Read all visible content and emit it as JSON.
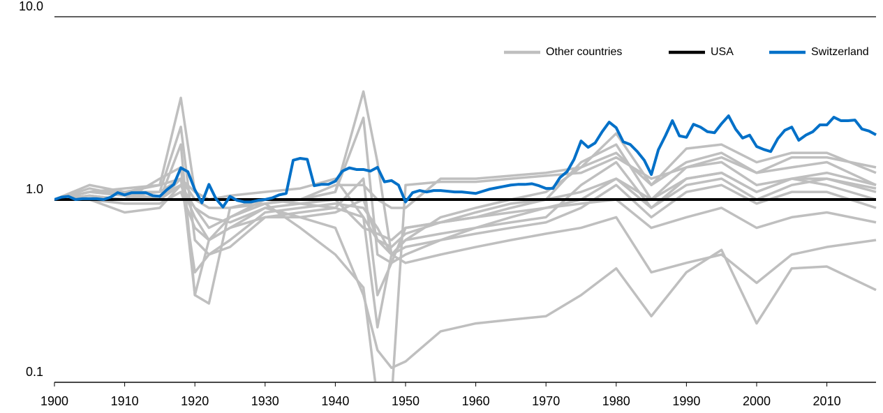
{
  "chart_data": {
    "type": "line",
    "log_y": true,
    "grid": true,
    "xlim": [
      1900,
      2017
    ],
    "xticks": [
      1900,
      1910,
      1920,
      1930,
      1940,
      1950,
      1960,
      1970,
      1980,
      1990,
      2000,
      2010
    ],
    "ylim": [
      0.1,
      10
    ],
    "yticks": [
      0.1,
      {
        "value": 1,
        "label": "1.0"
      },
      {
        "value": 10,
        "label": "10.0"
      }
    ],
    "series": [
      {
        "name": "Other countries",
        "color": "#bfbfbf",
        "x": [
          1900,
          1905,
          1910,
          1915,
          1918,
          1920,
          1922,
          1925,
          1930,
          1935,
          1940,
          1944,
          1946,
          1948,
          1950,
          1955,
          1960,
          1965,
          1970,
          1975,
          1980,
          1985,
          1990,
          1995,
          2000,
          2005,
          2010,
          2017
        ],
        "lines": [
          [
            1.0,
            1.1,
            1.1,
            1.2,
            3.6,
            1.1,
            1.0,
            1.0,
            1.0,
            1.0,
            1.1,
            3.9,
            1.6,
            0.5,
            0.6,
            0.8,
            0.9,
            1.0,
            1.1,
            1.5,
            2.3,
            1.2,
            1.9,
            2.0,
            1.6,
            1.8,
            1.8,
            1.4
          ],
          [
            1.0,
            1.15,
            1.05,
            1.1,
            2.5,
            0.6,
            0.5,
            0.55,
            0.8,
            0.85,
            0.9,
            1.3,
            0.3,
            0.45,
            0.7,
            0.75,
            0.8,
            0.9,
            1.0,
            1.6,
            2.0,
            1.0,
            1.5,
            1.7,
            1.4,
            1.5,
            1.6,
            1.2
          ],
          [
            1.0,
            1.0,
            0.85,
            0.9,
            1.2,
            0.8,
            0.6,
            0.7,
            0.9,
            0.95,
            0.9,
            0.8,
            0.2,
            0.5,
            0.6,
            0.65,
            0.7,
            0.75,
            0.8,
            1.2,
            1.6,
            0.9,
            1.3,
            1.4,
            1.1,
            1.3,
            1.2,
            1.0
          ],
          [
            1.0,
            1.05,
            1.0,
            1.0,
            1.3,
            0.4,
            0.5,
            0.6,
            0.85,
            0.9,
            0.95,
            0.9,
            0.7,
            0.5,
            0.55,
            0.6,
            0.65,
            0.7,
            0.75,
            0.9,
            1.2,
            0.8,
            1.1,
            1.2,
            0.95,
            1.1,
            1.1,
            0.9
          ],
          [
            1.0,
            1.1,
            1.1,
            1.0,
            2.0,
            0.3,
            0.6,
            0.8,
            1.0,
            1.0,
            1.1,
            2.8,
            0.5,
            0.45,
            0.5,
            0.6,
            0.7,
            0.8,
            0.9,
            1.0,
            1.3,
            0.9,
            1.2,
            1.3,
            1.0,
            1.2,
            1.3,
            1.1
          ],
          [
            1.0,
            1.0,
            0.95,
            0.95,
            1.1,
            0.7,
            0.6,
            0.7,
            0.8,
            0.8,
            0.7,
            0.3,
            0.15,
            0.12,
            0.13,
            0.19,
            0.21,
            0.22,
            0.23,
            0.3,
            0.42,
            0.23,
            0.4,
            0.53,
            0.21,
            0.42,
            0.43,
            0.32
          ],
          [
            1.0,
            1.1,
            1.05,
            1.0,
            1.2,
            0.9,
            0.8,
            0.75,
            0.9,
            0.8,
            0.85,
            1.0,
            0.6,
            0.5,
            0.45,
            0.5,
            0.55,
            0.6,
            0.65,
            0.7,
            0.8,
            0.4,
            0.45,
            0.5,
            0.35,
            0.5,
            0.55,
            0.6
          ],
          [
            1.0,
            1.2,
            1.1,
            1.1,
            1.3,
            1.0,
            0.9,
            0.9,
            1.0,
            0.95,
            1.0,
            0.7,
            0.65,
            0.6,
            0.7,
            0.75,
            0.8,
            0.85,
            0.9,
            0.95,
            1.0,
            0.7,
            0.8,
            0.9,
            0.7,
            0.8,
            0.85,
            0.75
          ],
          [
            1.0,
            1.05,
            1.0,
            1.05,
            1.2,
            0.9,
            0.7,
            0.8,
            0.95,
            1.0,
            1.2,
            1.2,
            1.0,
            0.9,
            0.9,
            1.3,
            1.3,
            1.35,
            1.4,
            1.5,
            1.8,
            1.2,
            1.6,
            1.8,
            1.4,
            1.7,
            1.7,
            1.5
          ],
          [
            1.0,
            1.1,
            1.15,
            1.2,
            1.3,
            1.1,
            1.0,
            1.05,
            1.1,
            1.15,
            1.3,
            0.8,
            0.6,
            0.55,
            0.65,
            0.75,
            0.85,
            0.95,
            1.0,
            1.1,
            1.3,
            1.0,
            1.3,
            1.4,
            1.1,
            1.3,
            1.3,
            1.15
          ],
          [
            1.0,
            1.05,
            1.0,
            1.3,
            1.5,
            0.3,
            0.27,
            0.9,
            0.95,
            0.7,
            0.5,
            0.33,
            0.08,
            0.08,
            1.2,
            1.25,
            1.25,
            1.3,
            1.35,
            1.4,
            1.7,
            1.3,
            1.5,
            1.6,
            1.2,
            1.3,
            1.4,
            1.2
          ]
        ]
      },
      {
        "name": "USA",
        "color": "#000000",
        "x": [
          1900,
          2017
        ],
        "values": [
          1,
          1
        ]
      },
      {
        "name": "Switzerland",
        "color": "#0070c8",
        "x": [
          1900,
          1901,
          1902,
          1903,
          1904,
          1905,
          1906,
          1907,
          1908,
          1909,
          1910,
          1911,
          1912,
          1913,
          1914,
          1915,
          1916,
          1917,
          1918,
          1919,
          1920,
          1921,
          1922,
          1923,
          1924,
          1925,
          1926,
          1927,
          1928,
          1929,
          1930,
          1931,
          1932,
          1933,
          1934,
          1935,
          1936,
          1937,
          1938,
          1939,
          1940,
          1941,
          1942,
          1943,
          1944,
          1945,
          1946,
          1947,
          1948,
          1949,
          1950,
          1951,
          1952,
          1953,
          1954,
          1955,
          1956,
          1957,
          1958,
          1959,
          1960,
          1961,
          1962,
          1963,
          1964,
          1965,
          1966,
          1967,
          1968,
          1969,
          1970,
          1971,
          1972,
          1973,
          1974,
          1975,
          1976,
          1977,
          1978,
          1979,
          1980,
          1981,
          1982,
          1983,
          1984,
          1985,
          1986,
          1987,
          1988,
          1989,
          1990,
          1991,
          1992,
          1993,
          1994,
          1995,
          1996,
          1997,
          1998,
          1999,
          2000,
          2001,
          2002,
          2003,
          2004,
          2005,
          2006,
          2007,
          2008,
          2009,
          2010,
          2011,
          2012,
          2013,
          2014,
          2015,
          2016,
          2017
        ],
        "values": [
          1.0,
          1.03,
          1.04,
          1.0,
          1.01,
          1.01,
          1.01,
          1.0,
          1.03,
          1.09,
          1.06,
          1.09,
          1.09,
          1.09,
          1.05,
          1.04,
          1.13,
          1.21,
          1.49,
          1.42,
          1.13,
          0.96,
          1.21,
          1.01,
          0.91,
          1.04,
          0.99,
          0.97,
          0.97,
          0.99,
          1.0,
          1.02,
          1.06,
          1.08,
          1.64,
          1.68,
          1.66,
          1.19,
          1.21,
          1.21,
          1.26,
          1.43,
          1.49,
          1.46,
          1.46,
          1.43,
          1.5,
          1.25,
          1.27,
          1.2,
          0.97,
          1.09,
          1.12,
          1.1,
          1.12,
          1.12,
          1.11,
          1.1,
          1.1,
          1.09,
          1.08,
          1.11,
          1.14,
          1.16,
          1.18,
          1.2,
          1.21,
          1.21,
          1.22,
          1.19,
          1.15,
          1.15,
          1.32,
          1.42,
          1.66,
          2.09,
          1.93,
          2.04,
          2.35,
          2.65,
          2.47,
          2.07,
          2.0,
          1.83,
          1.64,
          1.37,
          1.87,
          2.23,
          2.7,
          2.23,
          2.19,
          2.58,
          2.49,
          2.35,
          2.32,
          2.6,
          2.87,
          2.43,
          2.17,
          2.25,
          1.95,
          1.88,
          1.83,
          2.15,
          2.39,
          2.49,
          2.11,
          2.25,
          2.35,
          2.56,
          2.56,
          2.82,
          2.7,
          2.7,
          2.72,
          2.43,
          2.37,
          2.26
        ]
      }
    ]
  }
}
